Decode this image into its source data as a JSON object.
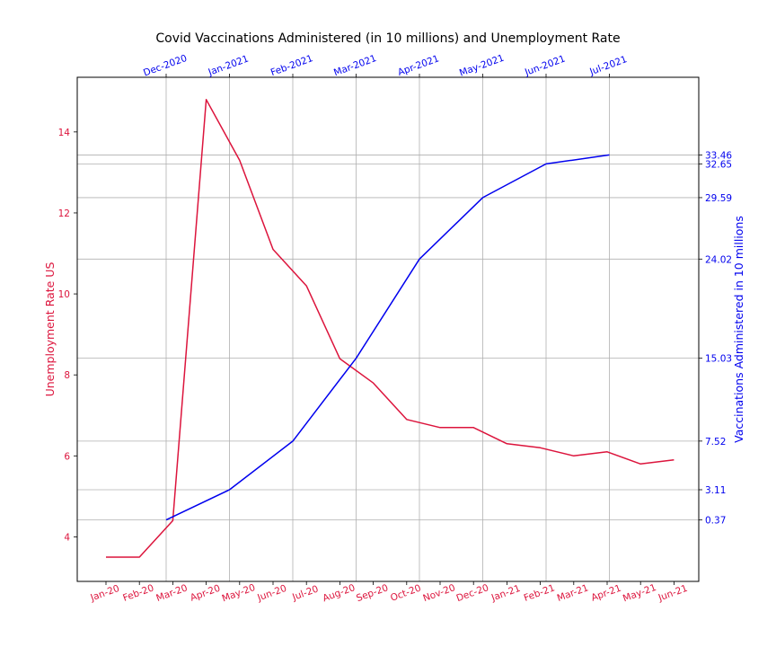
{
  "chart_data": {
    "type": "line",
    "title": "Covid Vaccinations Administered (in 10 millions) and Unemployment Rate",
    "colors": {
      "unemployment": "#dc143c",
      "vaccinations": "#0000ee"
    },
    "grid": true,
    "unemployment": {
      "ylabel": "Unemployment Rate US",
      "ylim": [
        2.9,
        15.35
      ],
      "yticks": [
        "4",
        "6",
        "8",
        "10",
        "12",
        "14"
      ],
      "x": [
        "Jan-20",
        "Feb-20",
        "Mar-20",
        "Apr-20",
        "May-20",
        "Jun-20",
        "Jul-20",
        "Aug-20",
        "Sep-20",
        "Oct-20",
        "Nov-20",
        "Dec-20",
        "Jan-21",
        "Feb-21",
        "Mar-21",
        "Apr-21",
        "May-21",
        "Jun-21"
      ],
      "values": [
        3.5,
        3.5,
        4.4,
        14.8,
        13.3,
        11.1,
        10.2,
        8.4,
        7.8,
        6.9,
        6.7,
        6.7,
        6.3,
        6.2,
        6.0,
        6.1,
        5.8,
        5.9
      ]
    },
    "vaccinations": {
      "ylabel": "Vaccinations Administered in 10 millions",
      "ylim": [
        -5.2,
        40.5
      ],
      "yticks": [
        "0.37",
        "3.11",
        "7.52",
        "15.03",
        "24.02",
        "29.59",
        "32.65",
        "33.46"
      ],
      "x": [
        "Dec-2020",
        "Jan-2021",
        "Feb-2021",
        "Mar-2021",
        "Apr-2021",
        "May-2021",
        "Jun-2021",
        "Jul-2021"
      ],
      "values": [
        0.37,
        3.11,
        7.52,
        15.03,
        24.02,
        29.59,
        32.65,
        33.46
      ]
    }
  }
}
